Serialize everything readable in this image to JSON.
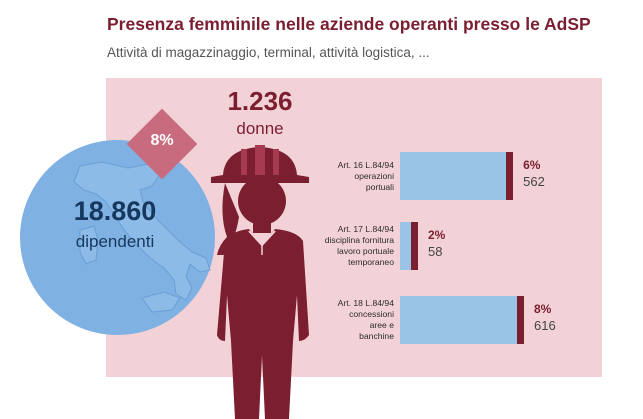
{
  "title": "Presenza femminile nelle aziende operanti presso le AdSP",
  "subtitle": "Attività di magazzinaggio, terminal, attività logistica, ...",
  "colors": {
    "accent": "#7b1e30",
    "panel": "#f3d2d7",
    "globe": "#7fb1e3",
    "bar": "#9ac4e6",
    "pct_badge": "#c96b7e"
  },
  "total": {
    "value": "18.860",
    "label": "dipendenti",
    "icon": "italy-map-icon"
  },
  "women": {
    "value": "1.236",
    "label": "donne",
    "share": "8%",
    "icon": "female-worker-hardhat-icon"
  },
  "chart_data": {
    "type": "bar",
    "orientation": "horizontal",
    "categories": [
      "Art. 16 L.84/94 operazioni portuali",
      "Art. 17 L.84/94 disciplina fornitura lavoro portuale temporaneo",
      "Art. 18 L.84/94 concessioni aree e banchine"
    ],
    "series": [
      {
        "name": "",
        "values": [
          562,
          58,
          616
        ]
      }
    ],
    "rows": [
      {
        "label_lines": [
          "Art. 16 L.84/94",
          "operazioni",
          "portuali"
        ],
        "percent": "6%",
        "value": "562",
        "women": 562
      },
      {
        "label_lines": [
          "Art. 17 L.84/94",
          "disciplina fornitura",
          "lavoro portuale",
          "temporaneo"
        ],
        "percent": "2%",
        "value": "58",
        "women": 58
      },
      {
        "label_lines": [
          "Art. 18 L.84/94",
          "concessioni",
          "aree e",
          "banchine"
        ],
        "percent": "8%",
        "value": "616",
        "women": 616
      }
    ],
    "percents": [
      6,
      2,
      8
    ],
    "title": "Presenza femminile nelle aziende operanti presso le AdSP",
    "xlabel": "",
    "ylabel": "",
    "grid": false,
    "legend": "none"
  }
}
